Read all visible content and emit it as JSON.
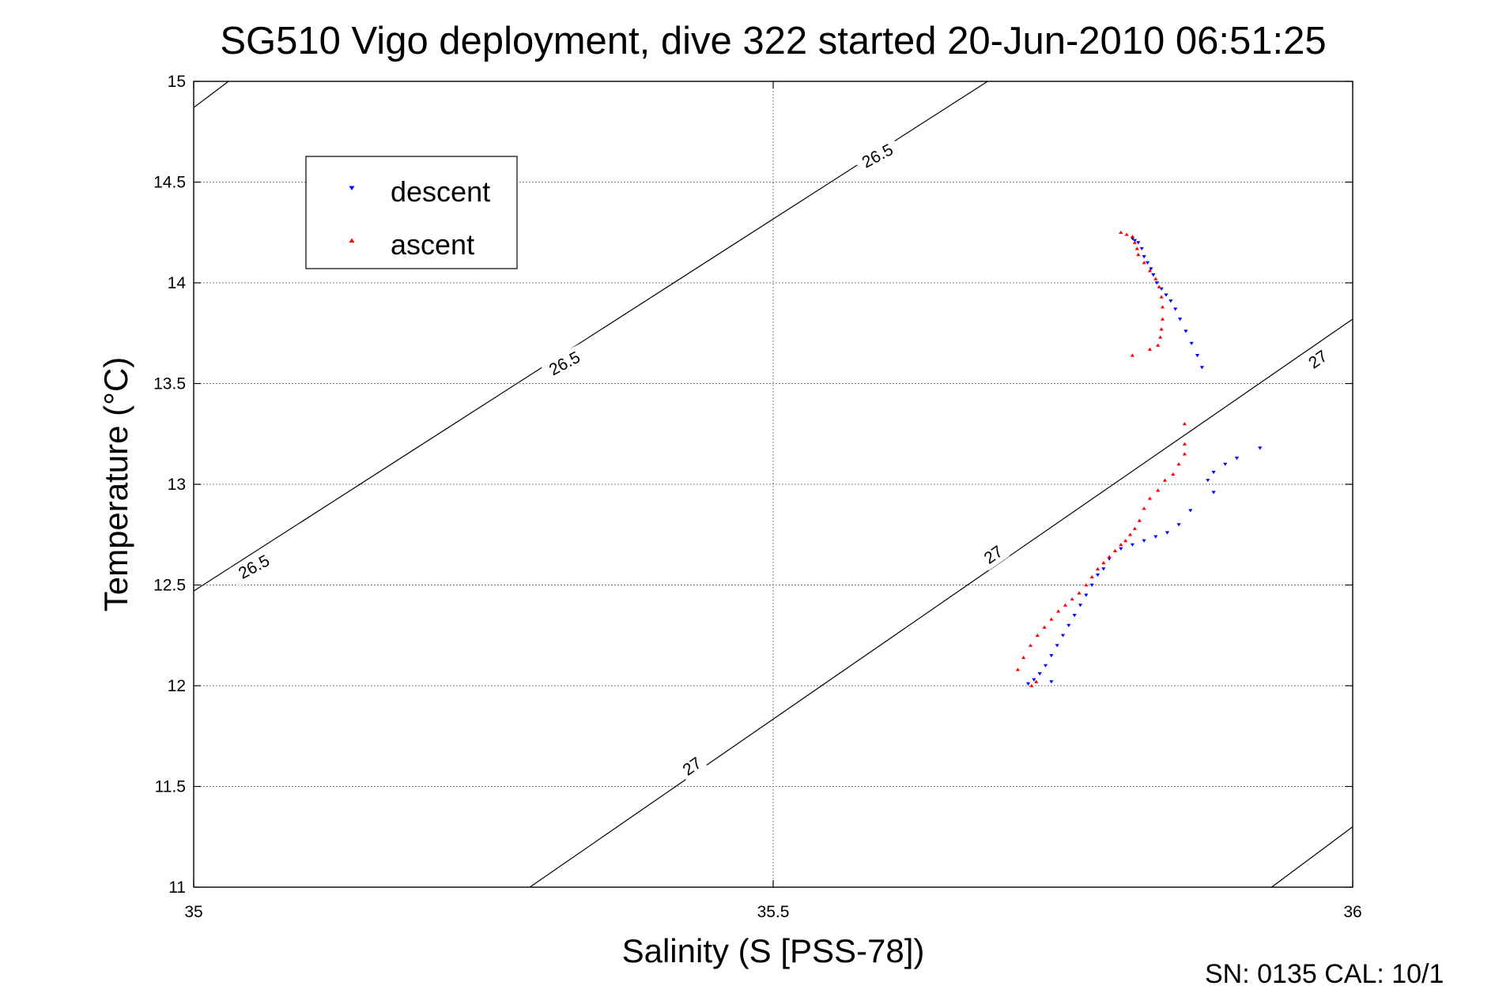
{
  "chart_data": {
    "type": "scatter",
    "title": "SG510 Vigo deployment, dive 322 started 20-Jun-2010 06:51:25",
    "xlabel": "Salinity (S [PSS-78])",
    "ylabel": "Temperature (°C)",
    "xlim": [
      35,
      36
    ],
    "ylim": [
      11,
      15
    ],
    "xticks": [
      35,
      35.5,
      36
    ],
    "yticks": [
      11,
      11.5,
      12,
      12.5,
      13,
      13.5,
      14,
      14.5,
      15
    ],
    "xtick_labels": [
      "35",
      "35.5",
      "36"
    ],
    "ytick_labels": [
      "11",
      "11.5",
      "12",
      "12.5",
      "13",
      "13.5",
      "14",
      "14.5",
      "15"
    ],
    "grid": true,
    "legend_placement": "top-left",
    "footer": "SN: 0135  CAL: 10/1",
    "contours": [
      {
        "label": "26.5",
        "points": [
          [
            35.0,
            14.87
          ],
          [
            35.03,
            15.0
          ]
        ]
      },
      {
        "label": "26.5",
        "points": [
          [
            35.0,
            12.47
          ],
          [
            35.685,
            15.0
          ]
        ]
      },
      {
        "label": "27",
        "points": [
          [
            35.29,
            11.0
          ],
          [
            36.0,
            13.82
          ]
        ]
      },
      {
        "label": "27",
        "points": [
          [
            35.93,
            11.0
          ],
          [
            36.0,
            11.3
          ]
        ]
      }
    ],
    "contour_labels": [
      {
        "text": "26.5",
        "x": 35.59,
        "y": 14.63,
        "rotation": -28
      },
      {
        "text": "26.5",
        "x": 35.32,
        "y": 13.6,
        "rotation": -28
      },
      {
        "text": "26.5",
        "x": 35.052,
        "y": 12.59,
        "rotation": -28
      },
      {
        "text": "27",
        "x": 35.97,
        "y": 13.62,
        "rotation": -35
      },
      {
        "text": "27",
        "x": 35.69,
        "y": 12.65,
        "rotation": -35
      },
      {
        "text": "27",
        "x": 35.43,
        "y": 11.6,
        "rotation": -35
      }
    ],
    "series": [
      {
        "name": "descent",
        "color": "#0000ff",
        "marker": "triangle-down",
        "points": [
          [
            35.81,
            14.22
          ],
          [
            35.812,
            14.21
          ],
          [
            35.815,
            14.2
          ],
          [
            35.818,
            14.17
          ],
          [
            35.82,
            14.13
          ],
          [
            35.823,
            14.1
          ],
          [
            35.826,
            14.07
          ],
          [
            35.828,
            14.04
          ],
          [
            35.831,
            14.0
          ],
          [
            35.835,
            13.97
          ],
          [
            35.839,
            13.94
          ],
          [
            35.843,
            13.91
          ],
          [
            35.847,
            13.87
          ],
          [
            35.851,
            13.82
          ],
          [
            35.856,
            13.76
          ],
          [
            35.861,
            13.7
          ],
          [
            35.866,
            13.64
          ],
          [
            35.87,
            13.58
          ],
          [
            35.92,
            13.18
          ],
          [
            35.9,
            13.13
          ],
          [
            35.89,
            13.1
          ],
          [
            35.88,
            13.06
          ],
          [
            35.875,
            13.02
          ],
          [
            35.88,
            12.96
          ],
          [
            35.86,
            12.87
          ],
          [
            35.85,
            12.8
          ],
          [
            35.84,
            12.76
          ],
          [
            35.83,
            12.74
          ],
          [
            35.82,
            12.72
          ],
          [
            35.81,
            12.7
          ],
          [
            35.8,
            12.68
          ],
          [
            35.79,
            12.63
          ],
          [
            35.785,
            12.58
          ],
          [
            35.78,
            12.55
          ],
          [
            35.775,
            12.5
          ],
          [
            35.77,
            12.45
          ],
          [
            35.765,
            12.4
          ],
          [
            35.76,
            12.35
          ],
          [
            35.755,
            12.3
          ],
          [
            35.75,
            12.25
          ],
          [
            35.745,
            12.2
          ],
          [
            35.74,
            12.15
          ],
          [
            35.735,
            12.1
          ],
          [
            35.73,
            12.06
          ],
          [
            35.725,
            12.03
          ],
          [
            35.72,
            12.01
          ],
          [
            35.74,
            12.02
          ]
        ]
      },
      {
        "name": "ascent",
        "color": "#ff0000",
        "marker": "triangle-up",
        "points": [
          [
            35.8,
            14.25
          ],
          [
            35.805,
            14.24
          ],
          [
            35.81,
            14.23
          ],
          [
            35.812,
            14.2
          ],
          [
            35.814,
            14.17
          ],
          [
            35.815,
            14.14
          ],
          [
            35.82,
            14.1
          ],
          [
            35.825,
            14.06
          ],
          [
            35.83,
            14.02
          ],
          [
            35.833,
            13.98
          ],
          [
            35.835,
            13.93
          ],
          [
            35.836,
            13.88
          ],
          [
            35.836,
            13.82
          ],
          [
            35.835,
            13.77
          ],
          [
            35.834,
            13.73
          ],
          [
            35.832,
            13.69
          ],
          [
            35.825,
            13.67
          ],
          [
            35.81,
            13.64
          ],
          [
            35.855,
            13.3
          ],
          [
            35.855,
            13.2
          ],
          [
            35.855,
            13.15
          ],
          [
            35.85,
            13.1
          ],
          [
            35.845,
            13.05
          ],
          [
            35.838,
            13.02
          ],
          [
            35.832,
            12.97
          ],
          [
            35.825,
            12.93
          ],
          [
            35.82,
            12.88
          ],
          [
            35.816,
            12.82
          ],
          [
            35.812,
            12.78
          ],
          [
            35.808,
            12.75
          ],
          [
            35.804,
            12.72
          ],
          [
            35.8,
            12.7
          ],
          [
            35.795,
            12.67
          ],
          [
            35.79,
            12.64
          ],
          [
            35.785,
            12.61
          ],
          [
            35.78,
            12.58
          ],
          [
            35.775,
            12.54
          ],
          [
            35.77,
            12.5
          ],
          [
            35.764,
            12.46
          ],
          [
            35.758,
            12.43
          ],
          [
            35.752,
            12.4
          ],
          [
            35.746,
            12.37
          ],
          [
            35.74,
            12.33
          ],
          [
            35.734,
            12.29
          ],
          [
            35.728,
            12.25
          ],
          [
            35.722,
            12.2
          ],
          [
            35.716,
            12.14
          ],
          [
            35.711,
            12.08
          ],
          [
            35.727,
            12.02
          ],
          [
            35.723,
            12.0
          ]
        ]
      }
    ]
  }
}
